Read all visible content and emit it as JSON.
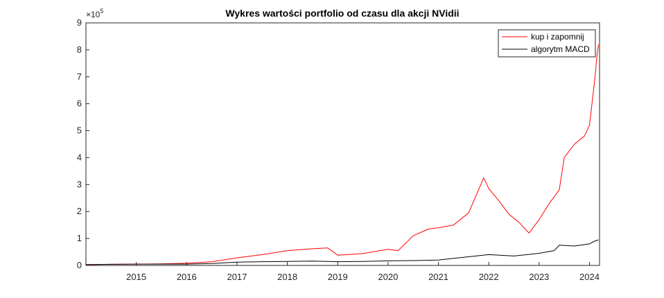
{
  "chart_data": {
    "type": "line",
    "title": "Wykres wartości portfolio od czasu dla akcji NVidii",
    "xlabel": "",
    "ylabel": "",
    "xlim": [
      2014.0,
      2024.2
    ],
    "ylim": [
      0,
      900000
    ],
    "y_exponent_base": "×10",
    "y_exponent_power": "5",
    "x_ticks": [
      2015,
      2016,
      2017,
      2018,
      2019,
      2020,
      2021,
      2022,
      2023,
      2024
    ],
    "x_tick_labels": [
      "2015",
      "2016",
      "2017",
      "2018",
      "2019",
      "2020",
      "2021",
      "2022",
      "2023",
      "2024"
    ],
    "y_ticks": [
      0,
      100000,
      200000,
      300000,
      400000,
      500000,
      600000,
      700000,
      800000,
      900000
    ],
    "y_tick_labels": [
      "0",
      "1",
      "2",
      "3",
      "4",
      "5",
      "6",
      "7",
      "8",
      "9"
    ],
    "grid": false,
    "legend_position": "top-right",
    "series": [
      {
        "name": "kup i zapomnij",
        "color": "#ff0000",
        "x": [
          2014.0,
          2014.5,
          2015.0,
          2015.5,
          2016.0,
          2016.5,
          2017.0,
          2017.5,
          2018.0,
          2018.5,
          2018.8,
          2019.0,
          2019.5,
          2020.0,
          2020.2,
          2020.5,
          2020.8,
          2021.0,
          2021.3,
          2021.6,
          2021.9,
          2022.0,
          2022.2,
          2022.4,
          2022.6,
          2022.8,
          2023.0,
          2023.2,
          2023.4,
          2023.5,
          2023.7,
          2023.9,
          2024.0,
          2024.1,
          2024.15,
          2024.18
        ],
        "y": [
          3000,
          4000,
          5000,
          6000,
          8000,
          14000,
          28000,
          40000,
          55000,
          62000,
          65000,
          38000,
          44000,
          60000,
          55000,
          110000,
          135000,
          140000,
          150000,
          195000,
          325000,
          285000,
          240000,
          190000,
          160000,
          120000,
          170000,
          230000,
          280000,
          400000,
          450000,
          480000,
          520000,
          680000,
          780000,
          820000
        ]
      },
      {
        "name": "algorytm MACD",
        "color": "#000000",
        "x": [
          2014.0,
          2014.5,
          2015.0,
          2015.5,
          2016.0,
          2016.5,
          2017.0,
          2017.5,
          2018.0,
          2018.5,
          2019.0,
          2019.5,
          2020.0,
          2020.5,
          2021.0,
          2021.5,
          2022.0,
          2022.5,
          2023.0,
          2023.3,
          2023.4,
          2023.7,
          2024.0,
          2024.1,
          2024.18
        ],
        "y": [
          3000,
          4000,
          5000,
          5000,
          5000,
          7000,
          12000,
          14000,
          15000,
          16000,
          14000,
          15000,
          17000,
          18000,
          20000,
          30000,
          40000,
          35000,
          45000,
          55000,
          75000,
          72000,
          80000,
          90000,
          95000
        ]
      }
    ]
  }
}
